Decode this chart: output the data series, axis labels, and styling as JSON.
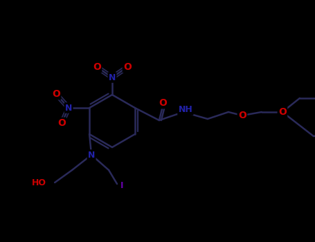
{
  "bg": "#000000",
  "bond_color": "#2a2a5a",
  "bond_width": 1.8,
  "atom_colors": {
    "C": "#2a2a5a",
    "N": "#2222aa",
    "O": "#cc0000",
    "I": "#6600aa",
    "H": "#888888"
  },
  "font_size_label": 9,
  "font_size_small": 7
}
